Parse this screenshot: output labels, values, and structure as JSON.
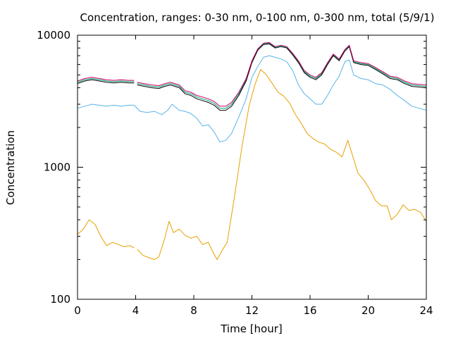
{
  "chart_data": {
    "type": "line",
    "title": "Concentration, ranges: 0-30 nm, 0-100 nm, 0-300 nm, total (5/9/1)",
    "xlabel": "Time [hour]",
    "ylabel": "Concentration",
    "xlim": [
      0,
      24
    ],
    "ylim": [
      100,
      10000
    ],
    "yscale": "log",
    "grid": false,
    "legend": "none",
    "x_ticks": [
      0,
      4,
      8,
      12,
      16,
      20,
      24
    ],
    "x_tick_labels": [
      "0",
      "4",
      "8",
      "12",
      "16",
      "20",
      "24"
    ],
    "y_ticks": [
      100,
      1000,
      10000
    ],
    "y_tick_labels": [
      "100",
      "1000",
      "10000"
    ],
    "series": [
      {
        "color": "#e6a000",
        "x": [
          0,
          0.4,
          0.8,
          1.2,
          1.6,
          2,
          2.4,
          2.8,
          3.2,
          3.6,
          3.9,
          null,
          4.1,
          4.5,
          5,
          5.3,
          5.6,
          6,
          6.3,
          6.6,
          7,
          7.4,
          7.8,
          8.2,
          8.6,
          9,
          9.3,
          9.6,
          10,
          10.3,
          10.8,
          11.3,
          11.8,
          12.2,
          12.6,
          13,
          13.4,
          13.8,
          14.2,
          14.6,
          15,
          15.4,
          15.8,
          16.2,
          16.6,
          17,
          17.4,
          17.8,
          18.2,
          18.6,
          18.9,
          19.3,
          19.7,
          20.1,
          20.5,
          20.9,
          21.3,
          21.6,
          22,
          22.4,
          22.8,
          23.2,
          23.6,
          24
        ],
        "y": [
          310,
          340,
          400,
          370,
          300,
          255,
          270,
          260,
          250,
          255,
          245,
          null,
          240,
          215,
          205,
          200,
          210,
          290,
          390,
          320,
          340,
          305,
          290,
          300,
          260,
          270,
          230,
          200,
          240,
          270,
          600,
          1400,
          2900,
          4200,
          5500,
          5000,
          4300,
          3700,
          3450,
          3050,
          2500,
          2150,
          1800,
          1650,
          1550,
          1500,
          1370,
          1300,
          1200,
          1600,
          1250,
          900,
          800,
          680,
          560,
          510,
          510,
          400,
          440,
          520,
          470,
          480,
          455,
          390
        ]
      },
      {
        "color": "#56b4e9",
        "x": [
          0,
          0.5,
          1,
          1.5,
          2,
          2.5,
          3,
          3.5,
          3.9,
          4.3,
          4.8,
          5.3,
          5.8,
          6.2,
          6.5,
          7,
          7.4,
          7.8,
          8.2,
          8.6,
          9,
          9.4,
          9.8,
          10.2,
          10.6,
          11.1,
          11.6,
          12,
          12.4,
          12.8,
          13.2,
          13.6,
          14,
          14.4,
          14.8,
          15.2,
          15.6,
          16,
          16.4,
          16.8,
          17.2,
          17.6,
          18,
          18.4,
          18.7,
          19,
          19.5,
          20,
          20.5,
          21,
          21.5,
          22,
          22.5,
          23,
          23.5,
          24
        ],
        "y": [
          2800,
          2900,
          3000,
          2950,
          2900,
          2950,
          2900,
          2950,
          2950,
          2650,
          2600,
          2650,
          2500,
          2700,
          3000,
          2700,
          2650,
          2550,
          2350,
          2050,
          2100,
          1850,
          1550,
          1600,
          1800,
          2400,
          3300,
          4800,
          5800,
          6800,
          7000,
          6800,
          6600,
          6300,
          5400,
          4200,
          3600,
          3300,
          3000,
          3000,
          3500,
          4200,
          4900,
          6300,
          6500,
          5000,
          4700,
          4600,
          4300,
          4200,
          3900,
          3500,
          3200,
          2900,
          2800,
          2700
        ]
      },
      {
        "color": "#009e73",
        "x": [
          0,
          0.5,
          1,
          1.5,
          2,
          2.5,
          3,
          3.5,
          3.9,
          null,
          4.1,
          4.6,
          5.1,
          5.6,
          6,
          6.4,
          7,
          7.4,
          7.8,
          8.2,
          8.6,
          9,
          9.4,
          9.8,
          10.2,
          10.6,
          11.1,
          11.6,
          12,
          12.4,
          12.8,
          13.2,
          13.6,
          14,
          14.4,
          14.8,
          15.2,
          15.6,
          16,
          16.4,
          16.8,
          17.2,
          17.6,
          18,
          18.4,
          18.7,
          19,
          19.5,
          20,
          20.5,
          21,
          21.5,
          22,
          22.5,
          23,
          23.5,
          24
        ],
        "y": [
          4400,
          4600,
          4700,
          4600,
          4500,
          4450,
          4500,
          4450,
          4450,
          null,
          4300,
          4200,
          4100,
          4050,
          4200,
          4300,
          4100,
          3700,
          3600,
          3400,
          3300,
          3200,
          3050,
          2800,
          2800,
          3000,
          3600,
          4600,
          6300,
          7800,
          8600,
          8700,
          8100,
          8300,
          8100,
          7200,
          6300,
          5300,
          4900,
          4700,
          5100,
          6100,
          7100,
          6500,
          7700,
          8300,
          6300,
          6100,
          6000,
          5600,
          5200,
          4800,
          4700,
          4400,
          4200,
          4150,
          4100
        ]
      },
      {
        "color": "#000000",
        "x": [
          0,
          0.5,
          1,
          1.5,
          2,
          2.5,
          3,
          3.5,
          3.9,
          null,
          4.1,
          4.6,
          5.1,
          5.6,
          6,
          6.4,
          7,
          7.4,
          7.8,
          8.2,
          8.6,
          9,
          9.4,
          9.8,
          10.2,
          10.6,
          11.1,
          11.6,
          12,
          12.4,
          12.8,
          13.2,
          13.6,
          14,
          14.4,
          14.8,
          15.2,
          15.6,
          16,
          16.4,
          16.8,
          17.2,
          17.6,
          18,
          18.4,
          18.7,
          19,
          19.5,
          20,
          20.5,
          21,
          21.5,
          22,
          22.5,
          23,
          23.5,
          24
        ],
        "y": [
          4300,
          4500,
          4600,
          4500,
          4400,
          4350,
          4400,
          4350,
          4350,
          null,
          4200,
          4100,
          4000,
          3950,
          4100,
          4200,
          4000,
          3600,
          3500,
          3300,
          3200,
          3100,
          2950,
          2700,
          2700,
          2900,
          3500,
          4500,
          6200,
          7700,
          8500,
          8600,
          8000,
          8200,
          8000,
          7100,
          6200,
          5200,
          4800,
          4600,
          5000,
          6000,
          7000,
          6400,
          7600,
          8200,
          6200,
          6000,
          5900,
          5500,
          5100,
          4700,
          4600,
          4300,
          4100,
          4050,
          4000
        ]
      },
      {
        "color": "#cc0066",
        "x": [
          0,
          0.5,
          1,
          1.5,
          2,
          2.5,
          3,
          3.5,
          3.9,
          null,
          4.1,
          4.6,
          5.1,
          5.6,
          6,
          6.4,
          7,
          7.4,
          7.8,
          8.2,
          8.6,
          9,
          9.4,
          9.8,
          10.2,
          10.6,
          11.1,
          11.6,
          12,
          12.4,
          12.8,
          13.2,
          13.6,
          14,
          14.4,
          14.8,
          15.2,
          15.6,
          16,
          16.4,
          16.8,
          17.2,
          17.6,
          18,
          18.4,
          18.7,
          19,
          19.5,
          20,
          20.5,
          21,
          21.5,
          22,
          22.5,
          23,
          23.5,
          24
        ],
        "y": [
          4500,
          4700,
          4800,
          4700,
          4600,
          4550,
          4600,
          4550,
          4550,
          null,
          4400,
          4300,
          4200,
          4150,
          4300,
          4400,
          4200,
          3800,
          3700,
          3500,
          3400,
          3300,
          3150,
          2900,
          2900,
          3100,
          3700,
          4700,
          6400,
          7900,
          8700,
          8800,
          8200,
          8400,
          8200,
          7300,
          6400,
          5400,
          5000,
          4800,
          5200,
          6200,
          7200,
          6600,
          7800,
          8400,
          6400,
          6200,
          6100,
          5700,
          5300,
          4900,
          4800,
          4500,
          4300,
          4250,
          4200
        ]
      }
    ]
  }
}
